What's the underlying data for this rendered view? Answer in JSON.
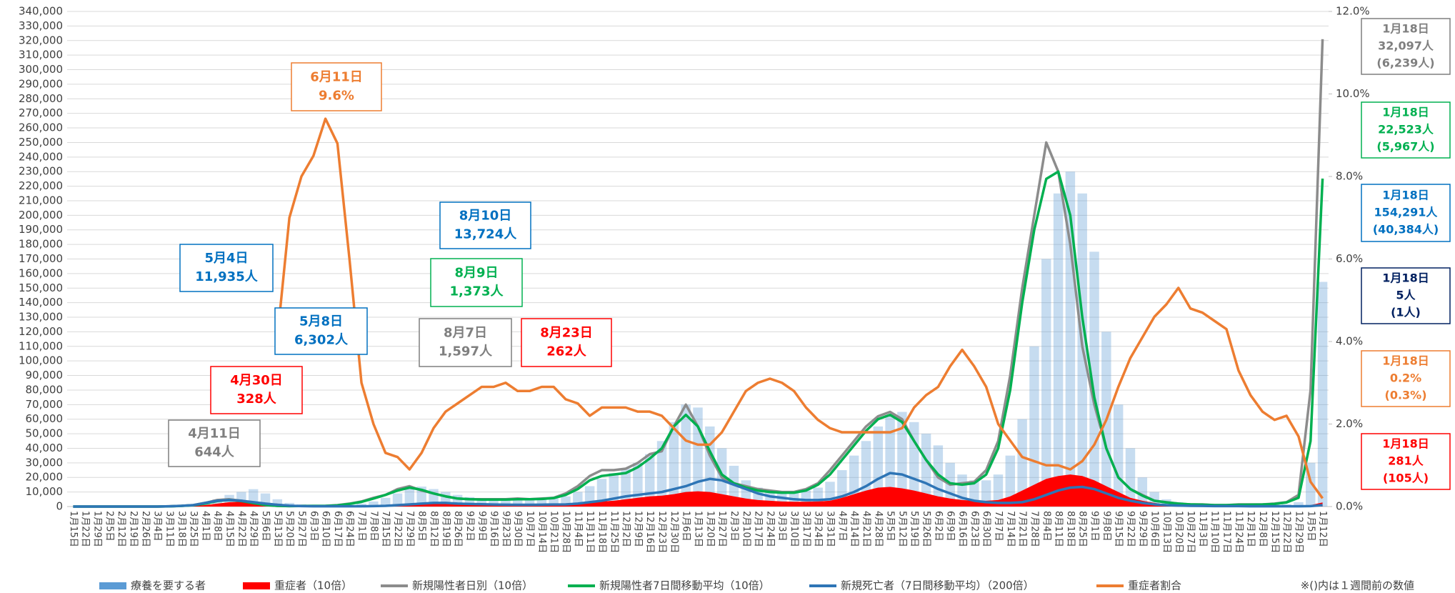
{
  "chart_data": {
    "type": "combo",
    "categories": [
      "1月15日",
      "1月22日",
      "1月29日",
      "2月5日",
      "2月12日",
      "2月19日",
      "2月26日",
      "3月4日",
      "3月11日",
      "3月18日",
      "3月25日",
      "4月1日",
      "4月8日",
      "4月15日",
      "4月22日",
      "4月29日",
      "5月6日",
      "5月13日",
      "5月20日",
      "5月27日",
      "6月3日",
      "6月10日",
      "6月17日",
      "6月24日",
      "7月1日",
      "7月8日",
      "7月15日",
      "7月22日",
      "7月29日",
      "8月5日",
      "8月12日",
      "8月19日",
      "8月26日",
      "9月2日",
      "9月9日",
      "9月16日",
      "9月23日",
      "9月30日",
      "10月7日",
      "10月14日",
      "10月21日",
      "10月28日",
      "11月4日",
      "11月11日",
      "11月18日",
      "11月25日",
      "12月2日",
      "12月9日",
      "12月16日",
      "12月23日",
      "12月30日",
      "1月6日",
      "1月13日",
      "1月20日",
      "1月27日",
      "2月3日",
      "2月10日",
      "2月17日",
      "2月24日",
      "3月3日",
      "3月10日",
      "3月17日",
      "3月24日",
      "3月31日",
      "4月7日",
      "4月14日",
      "4月21日",
      "4月28日",
      "5月5日",
      "5月12日",
      "5月19日",
      "5月26日",
      "6月2日",
      "6月9日",
      "6月16日",
      "6月23日",
      "6月30日",
      "7月7日",
      "7月14日",
      "7月21日",
      "7月28日",
      "8月4日",
      "8月11日",
      "8月18日",
      "8月25日",
      "9月1日",
      "9月8日",
      "9月15日",
      "9月22日",
      "9月29日",
      "10月6日",
      "10月13日",
      "10月20日",
      "10月27日",
      "11月3日",
      "11月10日",
      "11月17日",
      "11月24日",
      "12月1日",
      "12月8日",
      "12月15日",
      "12月22日",
      "12月29日",
      "1月5日",
      "1月12日"
    ],
    "ylim": [
      0,
      340000
    ],
    "yticks": [
      0,
      {
        "value": 10000,
        "label": "10,000"
      },
      {
        "value": 20000,
        "label": "20,000"
      },
      {
        "value": 30000,
        "label": "30,000"
      },
      {
        "value": 40000,
        "label": "40,000"
      },
      {
        "value": 50000,
        "label": "50,000"
      },
      {
        "value": 60000,
        "label": "60,000"
      },
      {
        "value": 70000,
        "label": "70,000"
      },
      {
        "value": 80000,
        "label": "80,000"
      },
      {
        "value": 90000,
        "label": "90,000"
      },
      {
        "value": 100000,
        "label": "100,000"
      },
      {
        "value": 110000,
        "label": "110,000"
      },
      {
        "value": 120000,
        "label": "120,000"
      },
      {
        "value": 130000,
        "label": "130,000"
      },
      {
        "value": 140000,
        "label": "140,000"
      },
      {
        "value": 150000,
        "label": "150,000"
      },
      {
        "value": 160000,
        "label": "160,000"
      },
      {
        "value": 170000,
        "label": "170,000"
      },
      {
        "value": 180000,
        "label": "180,000"
      },
      {
        "value": 190000,
        "label": "190,000"
      },
      {
        "value": 200000,
        "label": "200,000"
      },
      {
        "value": 210000,
        "label": "210,000"
      },
      {
        "value": 220000,
        "label": "220,000"
      },
      {
        "value": 230000,
        "label": "230,000"
      },
      {
        "value": 240000,
        "label": "240,000"
      },
      {
        "value": 250000,
        "label": "250,000"
      },
      {
        "value": 260000,
        "label": "260,000"
      },
      {
        "value": 270000,
        "label": "270,000"
      },
      {
        "value": 280000,
        "label": "280,000"
      },
      {
        "value": 290000,
        "label": "290,000"
      },
      {
        "value": 300000,
        "label": "300,000"
      },
      {
        "value": 310000,
        "label": "310,000"
      },
      {
        "value": 320000,
        "label": "320,000"
      },
      {
        "value": 330000,
        "label": "330,000"
      },
      {
        "value": 340000,
        "label": "340,000"
      }
    ],
    "y2lim": [
      0,
      12
    ],
    "y2ticks": [
      {
        "value": 0,
        "label": "0.0%"
      },
      {
        "value": 2,
        "label": "2.0%"
      },
      {
        "value": 4,
        "label": "4.0%"
      },
      {
        "value": 6,
        "label": "6.0%"
      },
      {
        "value": 8,
        "label": "8.0%"
      },
      {
        "value": 10,
        "label": "10.0%"
      },
      {
        "value": 12,
        "label": "12.0%"
      }
    ],
    "grid": true,
    "series": [
      {
        "name": "療養を要する者",
        "type": "bar",
        "color": "#5b9bd5",
        "values": [
          0,
          0,
          0,
          0,
          0,
          0,
          0,
          0,
          100,
          300,
          800,
          2000,
          5000,
          8000,
          10000,
          11935,
          9000,
          5000,
          2500,
          1500,
          1000,
          800,
          900,
          1200,
          2000,
          3500,
          6000,
          9000,
          12000,
          13724,
          12000,
          10000,
          8000,
          6500,
          5500,
          5000,
          4800,
          4600,
          4500,
          4800,
          5500,
          7000,
          10000,
          14000,
          19000,
          23000,
          26000,
          30000,
          36000,
          45000,
          58000,
          70000,
          68000,
          55000,
          40000,
          28000,
          18000,
          13000,
          11000,
          10000,
          10000,
          11000,
          13000,
          17000,
          25000,
          35000,
          45000,
          55000,
          62000,
          65000,
          58000,
          50000,
          42000,
          30000,
          22000,
          18000,
          18000,
          22000,
          35000,
          60000,
          110000,
          170000,
          215000,
          230000,
          215000,
          175000,
          120000,
          70000,
          40000,
          20000,
          10000,
          5000,
          3000,
          2000,
          1500,
          1000,
          800,
          700,
          700,
          1000,
          1200,
          1500,
          3000,
          30000,
          154291
        ]
      },
      {
        "name": "重症者（10倍）",
        "type": "area",
        "color": "#ff0000",
        "values": [
          0,
          0,
          0,
          0,
          0,
          0,
          0,
          0,
          100,
          300,
          500,
          1000,
          2000,
          3000,
          3280,
          3000,
          2500,
          2000,
          1200,
          800,
          600,
          500,
          400,
          350,
          300,
          350,
          500,
          900,
          1500,
          2200,
          2500,
          2620,
          2400,
          2000,
          1800,
          1700,
          1500,
          1500,
          1500,
          1600,
          1700,
          2000,
          2500,
          3000,
          3500,
          4000,
          5000,
          6000,
          7000,
          7500,
          8500,
          10000,
          10500,
          10000,
          8500,
          7000,
          5500,
          4500,
          4000,
          3500,
          3300,
          3300,
          3500,
          4000,
          6000,
          8500,
          11000,
          13000,
          13500,
          12500,
          11000,
          9000,
          7000,
          5500,
          4500,
          4000,
          4000,
          4500,
          7000,
          11000,
          15000,
          19000,
          21000,
          22000,
          21000,
          18000,
          14000,
          10000,
          6000,
          4000,
          2500,
          1500,
          1000,
          700,
          600,
          500,
          400,
          300,
          300,
          300,
          300,
          300,
          400,
          1000,
          2810
        ]
      },
      {
        "name": "新規陽性者日別（10倍）",
        "type": "line",
        "color": "#8c8c8c",
        "values": [
          0,
          0,
          0,
          0,
          0,
          0,
          0,
          0,
          200,
          500,
          1000,
          2500,
          4500,
          5000,
          4000,
          2500,
          1000,
          500,
          300,
          400,
          400,
          500,
          1000,
          2000,
          3500,
          6000,
          8000,
          12000,
          14000,
          11000,
          9000,
          7000,
          5500,
          5000,
          5000,
          5000,
          5000,
          5500,
          5000,
          5500,
          6000,
          9000,
          14000,
          21000,
          25000,
          25000,
          26000,
          30000,
          36000,
          38000,
          55000,
          70000,
          55000,
          35000,
          20000,
          16000,
          14000,
          12000,
          11000,
          10000,
          10000,
          12000,
          16000,
          25000,
          35000,
          45000,
          55000,
          62000,
          65000,
          60000,
          45000,
          32000,
          20000,
          15000,
          16000,
          17000,
          25000,
          45000,
          90000,
          150000,
          200000,
          250000,
          230000,
          180000,
          110000,
          70000,
          40000,
          20000,
          12000,
          8000,
          4000,
          3000,
          2000,
          1500,
          1500,
          1000,
          1000,
          1500,
          1500,
          1500,
          2000,
          3000,
          8000,
          80000,
          320970
        ]
      },
      {
        "name": "新規陽性者7日間移動平均（10倍）",
        "type": "line",
        "color": "#00b050",
        "values": [
          0,
          0,
          0,
          0,
          0,
          0,
          0,
          0,
          150,
          400,
          900,
          2000,
          3800,
          4500,
          3800,
          2400,
          1100,
          500,
          300,
          350,
          400,
          450,
          800,
          1800,
          3200,
          5500,
          8000,
          11000,
          13000,
          11500,
          9000,
          7000,
          5500,
          5000,
          4800,
          4800,
          4800,
          5000,
          5000,
          5200,
          5800,
          8000,
          12000,
          18000,
          21000,
          22000,
          23000,
          27000,
          33000,
          40000,
          55000,
          63000,
          55000,
          38000,
          22000,
          16000,
          13000,
          11000,
          10000,
          9500,
          9500,
          11000,
          15000,
          22000,
          32000,
          42000,
          52000,
          60000,
          63000,
          58000,
          45000,
          32000,
          22000,
          16000,
          15000,
          16000,
          22000,
          40000,
          80000,
          140000,
          190000,
          225000,
          230000,
          200000,
          130000,
          75000,
          40000,
          20000,
          12000,
          7500,
          4000,
          2800,
          2000,
          1500,
          1300,
          1000,
          1000,
          1200,
          1300,
          1400,
          1800,
          2800,
          6000,
          45000,
          225230
        ]
      },
      {
        "name": "新規死亡者（7日間移動平均）（200倍）",
        "type": "line",
        "color": "#2e75b6",
        "values": [
          0,
          0,
          0,
          0,
          0,
          0,
          0,
          0,
          200,
          500,
          1000,
          2500,
          4000,
          4500,
          4000,
          3000,
          2000,
          1200,
          600,
          300,
          200,
          200,
          200,
          200,
          200,
          300,
          500,
          1000,
          1500,
          2000,
          2500,
          2500,
          2000,
          1800,
          1600,
          1400,
          1300,
          1200,
          1200,
          1300,
          1400,
          1500,
          2000,
          3000,
          4000,
          5500,
          7000,
          8000,
          9000,
          10000,
          12000,
          14000,
          17000,
          19000,
          18000,
          15000,
          12000,
          9000,
          7000,
          6000,
          5000,
          4500,
          4500,
          5000,
          7000,
          10000,
          14000,
          19000,
          23000,
          22000,
          19000,
          16000,
          12000,
          9000,
          6000,
          4000,
          3000,
          2500,
          2500,
          3000,
          5000,
          8000,
          11000,
          13000,
          13500,
          12000,
          9000,
          6000,
          4000,
          2500,
          1500,
          1000,
          700,
          500,
          400,
          300,
          300,
          300,
          200,
          200,
          200,
          200,
          200,
          300,
          1000
        ]
      },
      {
        "name": "重症者割合",
        "type": "line",
        "axis": "y2",
        "color": "#ed7d31",
        "values": [
          null,
          null,
          null,
          null,
          null,
          null,
          null,
          null,
          null,
          null,
          null,
          null,
          null,
          null,
          null,
          null,
          null,
          4.1,
          7.0,
          8.0,
          8.5,
          9.4,
          8.8,
          6.0,
          3.0,
          2.0,
          1.3,
          1.2,
          0.9,
          1.3,
          1.9,
          2.3,
          2.5,
          2.7,
          2.9,
          2.9,
          3.0,
          2.8,
          2.8,
          2.9,
          2.9,
          2.6,
          2.5,
          2.2,
          2.4,
          2.4,
          2.4,
          2.3,
          2.3,
          2.2,
          1.9,
          1.6,
          1.5,
          1.5,
          1.8,
          2.3,
          2.8,
          3.0,
          3.1,
          3.0,
          2.8,
          2.4,
          2.1,
          1.9,
          1.8,
          1.8,
          1.8,
          1.8,
          1.8,
          1.9,
          2.4,
          2.7,
          2.9,
          3.4,
          3.8,
          3.4,
          2.9,
          2.0,
          1.6,
          1.2,
          1.1,
          1.0,
          1.0,
          0.9,
          1.1,
          1.5,
          2.1,
          2.9,
          3.6,
          4.1,
          4.6,
          4.9,
          5.3,
          4.8,
          4.7,
          4.5,
          4.3,
          3.3,
          2.7,
          2.3,
          2.1,
          2.2,
          1.7,
          0.6,
          0.2
        ]
      }
    ],
    "annotations": [
      {
        "lines": [
          "6月11日",
          "9.6%"
        ],
        "color": "#ed7d31"
      },
      {
        "lines": [
          "5月4日",
          "11,935人"
        ],
        "color": "#0070c0"
      },
      {
        "lines": [
          "8月10日",
          "13,724人"
        ],
        "color": "#0070c0"
      },
      {
        "lines": [
          "8月9日",
          "1,373人"
        ],
        "color": "#00b050"
      },
      {
        "lines": [
          "5月8日",
          "6,302人"
        ],
        "color": "#0070c0"
      },
      {
        "lines": [
          "8月7日",
          "1,597人"
        ],
        "color": "#7f7f7f"
      },
      {
        "lines": [
          "8月23日",
          "262人"
        ],
        "color": "#ff0000"
      },
      {
        "lines": [
          "4月30日",
          "328人"
        ],
        "color": "#ff0000"
      },
      {
        "lines": [
          "4月11日",
          "644人"
        ],
        "color": "#7f7f7f"
      },
      {
        "lines": [
          "1月18日",
          "32,097人",
          "(6,239人)"
        ],
        "color": "#7f7f7f"
      },
      {
        "lines": [
          "1月18日",
          "22,523人",
          "(5,967人)"
        ],
        "color": "#00b050"
      },
      {
        "lines": [
          "1月18日",
          "154,291人",
          "(40,384人)"
        ],
        "color": "#0070c0"
      },
      {
        "lines": [
          "1月18日",
          "5人",
          "(1人)"
        ],
        "color": "#002060"
      },
      {
        "lines": [
          "1月18日",
          "0.2%",
          "(0.3%)"
        ],
        "color": "#ed7d31"
      },
      {
        "lines": [
          "1月18日",
          "281人",
          "(105人)"
        ],
        "color": "#ff0000"
      }
    ],
    "note": "※()内は１週間前の数値"
  }
}
